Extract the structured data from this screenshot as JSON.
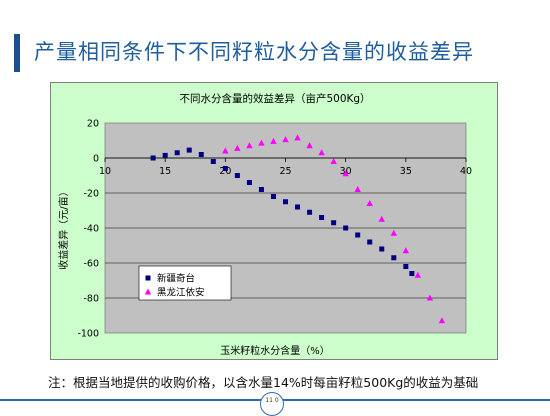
{
  "slide": {
    "title": "产量相同条件下不同籽粒水分含量的收益差异",
    "footnote": "注：根据当地提供的收购价格，以含水量14%时每亩籽粒500Kg的收益为基础",
    "page_number": "11 0"
  },
  "colors": {
    "accent": "#1d4f8c",
    "title": "#1f5e9e",
    "plot_background": "#c0c0c0",
    "chart_background": "#ccffcc",
    "series_xinjiang": "#000080",
    "series_heilongjiang": "#ff00ff"
  },
  "chart_data": {
    "type": "scatter",
    "title": "不同水分含量的效益差异（亩产500Kg）",
    "xlabel": "玉米籽粒水分含量（%）",
    "ylabel": "收益差异（元/亩）",
    "xlim": [
      10,
      40
    ],
    "ylim": [
      -100,
      20
    ],
    "xticks": [
      10,
      15,
      20,
      25,
      30,
      35,
      40
    ],
    "yticks": [
      20,
      0,
      -20,
      -40,
      -60,
      -80,
      -100
    ],
    "grid": true,
    "legend_position": "lower-left",
    "series": [
      {
        "name": "新疆奇台",
        "marker": "square",
        "points": [
          [
            14,
            0
          ],
          [
            15,
            1.5
          ],
          [
            16,
            3
          ],
          [
            17,
            4.5
          ],
          [
            18,
            2
          ],
          [
            19,
            -2
          ],
          [
            20,
            -6
          ],
          [
            21,
            -10
          ],
          [
            22,
            -14
          ],
          [
            23,
            -18
          ],
          [
            24,
            -22
          ],
          [
            25,
            -25
          ],
          [
            26,
            -28
          ],
          [
            27,
            -31
          ],
          [
            28,
            -34
          ],
          [
            29,
            -37
          ],
          [
            30,
            -40
          ],
          [
            31,
            -44
          ],
          [
            32,
            -48
          ],
          [
            33,
            -52
          ],
          [
            34,
            -57
          ],
          [
            35,
            -62
          ],
          [
            35.5,
            -66
          ]
        ]
      },
      {
        "name": "黑龙江依安",
        "marker": "triangle",
        "points": [
          [
            20,
            4
          ],
          [
            21,
            5.5
          ],
          [
            22,
            7
          ],
          [
            23,
            8.5
          ],
          [
            24,
            9.5
          ],
          [
            25,
            10.5
          ],
          [
            26,
            11.5
          ],
          [
            27,
            7
          ],
          [
            28,
            3
          ],
          [
            29,
            -2
          ],
          [
            30,
            -9
          ],
          [
            31,
            -18
          ],
          [
            32,
            -26
          ],
          [
            33,
            -35
          ],
          [
            34,
            -43
          ],
          [
            35,
            -53
          ],
          [
            36,
            -67
          ],
          [
            37,
            -80
          ],
          [
            38,
            -93
          ]
        ]
      }
    ]
  }
}
